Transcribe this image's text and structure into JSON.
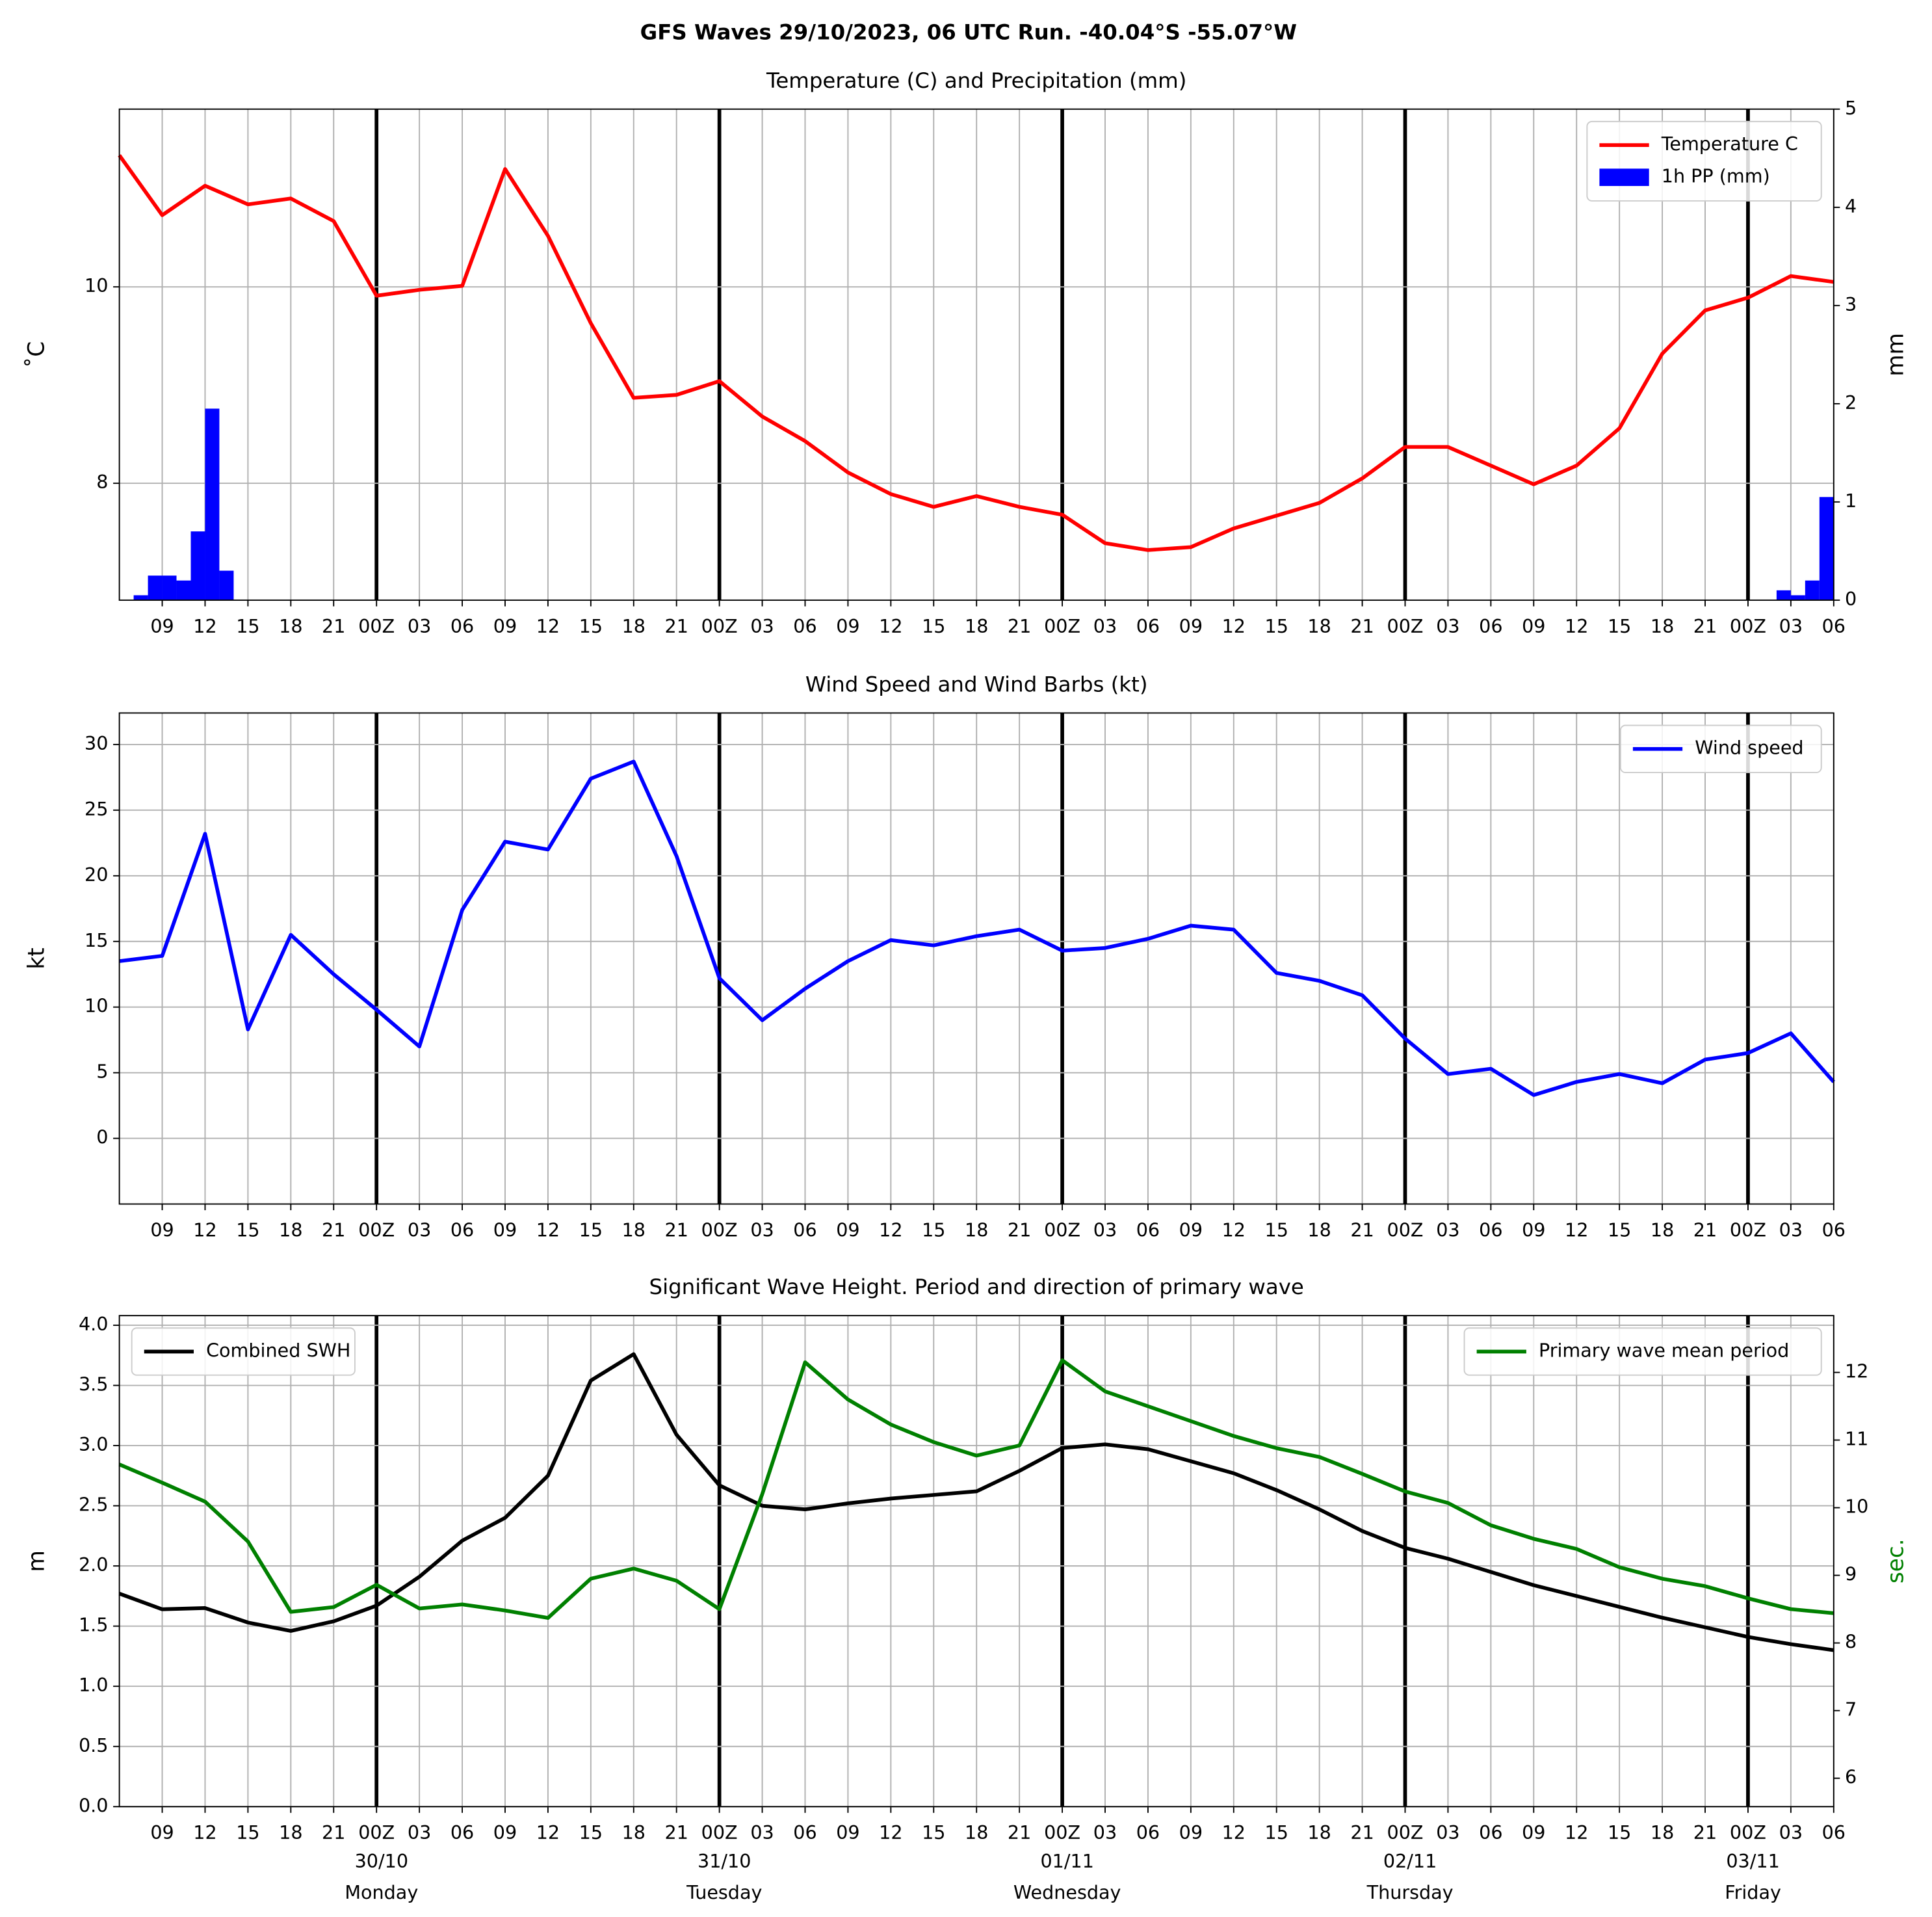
{
  "title": "GFS Waves 29/10/2023, 06 UTC Run. -40.04°S -55.07°W",
  "chart_data": [
    {
      "type": "line",
      "title": "Temperature (C) and Precipitation (mm)",
      "ylabel": "˚C",
      "y2label": "mm",
      "xlim": [
        0,
        120
      ],
      "ylim": [
        6.81,
        11.81
      ],
      "yticks": [
        8,
        10
      ],
      "y2lim": [
        0,
        5
      ],
      "y2ticks": [
        0,
        1,
        2,
        3,
        4,
        5
      ],
      "grid": true,
      "xticks": [
        {
          "value": 3,
          "label": "09"
        },
        {
          "value": 6,
          "label": "12"
        },
        {
          "value": 9,
          "label": "15"
        },
        {
          "value": 12,
          "label": "18"
        },
        {
          "value": 15,
          "label": "21"
        },
        {
          "value": 18,
          "label": "00Z"
        },
        {
          "value": 21,
          "label": "03"
        },
        {
          "value": 24,
          "label": "06"
        },
        {
          "value": 27,
          "label": "09"
        },
        {
          "value": 30,
          "label": "12"
        },
        {
          "value": 33,
          "label": "15"
        },
        {
          "value": 36,
          "label": "18"
        },
        {
          "value": 39,
          "label": "21"
        },
        {
          "value": 42,
          "label": "00Z"
        },
        {
          "value": 45,
          "label": "03"
        },
        {
          "value": 48,
          "label": "06"
        },
        {
          "value": 51,
          "label": "09"
        },
        {
          "value": 54,
          "label": "12"
        },
        {
          "value": 57,
          "label": "15"
        },
        {
          "value": 60,
          "label": "18"
        },
        {
          "value": 63,
          "label": "21"
        },
        {
          "value": 66,
          "label": "00Z"
        },
        {
          "value": 69,
          "label": "03"
        },
        {
          "value": 72,
          "label": "06"
        },
        {
          "value": 75,
          "label": "09"
        },
        {
          "value": 78,
          "label": "12"
        },
        {
          "value": 81,
          "label": "15"
        },
        {
          "value": 84,
          "label": "18"
        },
        {
          "value": 87,
          "label": "21"
        },
        {
          "value": 90,
          "label": "00Z"
        },
        {
          "value": 93,
          "label": "03"
        },
        {
          "value": 96,
          "label": "06"
        },
        {
          "value": 99,
          "label": "09"
        },
        {
          "value": 102,
          "label": "12"
        },
        {
          "value": 105,
          "label": "15"
        },
        {
          "value": 108,
          "label": "18"
        },
        {
          "value": 111,
          "label": "21"
        },
        {
          "value": 114,
          "label": "00Z"
        },
        {
          "value": 117,
          "label": "03"
        },
        {
          "value": 120,
          "label": "06"
        }
      ],
      "x": [
        0,
        3,
        6,
        9,
        12,
        15,
        18,
        21,
        24,
        27,
        30,
        33,
        36,
        39,
        42,
        45,
        48,
        51,
        54,
        57,
        60,
        63,
        66,
        69,
        72,
        75,
        78,
        81,
        84,
        87,
        90,
        93,
        96,
        99,
        102,
        105,
        108,
        111,
        114,
        117,
        120
      ],
      "series": [
        {
          "name": "Temperature C",
          "type": "line",
          "axis": "y",
          "color": "#ff0000",
          "legend": "upper right",
          "values": [
            11.34,
            10.73,
            11.03,
            10.84,
            10.9,
            10.67,
            9.91,
            9.97,
            10.01,
            11.2,
            10.52,
            9.63,
            8.87,
            8.9,
            9.04,
            8.68,
            8.43,
            8.11,
            7.89,
            7.76,
            7.87,
            7.76,
            7.68,
            7.39,
            7.32,
            7.35,
            7.54,
            7.67,
            7.8,
            8.05,
            8.37,
            8.37,
            8.18,
            7.99,
            8.18,
            8.56,
            9.32,
            9.76,
            9.89,
            10.11,
            10.05
          ]
        },
        {
          "name": "1h PP (mm)",
          "type": "bar",
          "axis": "y2",
          "color": "#0000ff",
          "legend": "upper right",
          "x": [
            1,
            2,
            3,
            4,
            5,
            6,
            7,
            116,
            117,
            118,
            119
          ],
          "values": [
            0.05,
            0.25,
            0.25,
            0.2,
            0.7,
            1.95,
            0.3,
            0.1,
            0.05,
            0.2,
            1.05
          ]
        }
      ]
    },
    {
      "type": "line",
      "title": "Wind Speed and Wind Barbs (kt)",
      "ylabel": "kt",
      "xlim": [
        0,
        120
      ],
      "ylim": [
        -5,
        32.4
      ],
      "yticks": [
        0,
        5,
        10,
        15,
        20,
        25,
        30
      ],
      "grid": true,
      "xticks": [
        {
          "value": 3,
          "label": "09"
        },
        {
          "value": 6,
          "label": "12"
        },
        {
          "value": 9,
          "label": "15"
        },
        {
          "value": 12,
          "label": "18"
        },
        {
          "value": 15,
          "label": "21"
        },
        {
          "value": 18,
          "label": "00Z"
        },
        {
          "value": 21,
          "label": "03"
        },
        {
          "value": 24,
          "label": "06"
        },
        {
          "value": 27,
          "label": "09"
        },
        {
          "value": 30,
          "label": "12"
        },
        {
          "value": 33,
          "label": "15"
        },
        {
          "value": 36,
          "label": "18"
        },
        {
          "value": 39,
          "label": "21"
        },
        {
          "value": 42,
          "label": "00Z"
        },
        {
          "value": 45,
          "label": "03"
        },
        {
          "value": 48,
          "label": "06"
        },
        {
          "value": 51,
          "label": "09"
        },
        {
          "value": 54,
          "label": "12"
        },
        {
          "value": 57,
          "label": "15"
        },
        {
          "value": 60,
          "label": "18"
        },
        {
          "value": 63,
          "label": "21"
        },
        {
          "value": 66,
          "label": "00Z"
        },
        {
          "value": 69,
          "label": "03"
        },
        {
          "value": 72,
          "label": "06"
        },
        {
          "value": 75,
          "label": "09"
        },
        {
          "value": 78,
          "label": "12"
        },
        {
          "value": 81,
          "label": "15"
        },
        {
          "value": 84,
          "label": "18"
        },
        {
          "value": 87,
          "label": "21"
        },
        {
          "value": 90,
          "label": "00Z"
        },
        {
          "value": 93,
          "label": "03"
        },
        {
          "value": 96,
          "label": "06"
        },
        {
          "value": 99,
          "label": "09"
        },
        {
          "value": 102,
          "label": "12"
        },
        {
          "value": 105,
          "label": "15"
        },
        {
          "value": 108,
          "label": "18"
        },
        {
          "value": 111,
          "label": "21"
        },
        {
          "value": 114,
          "label": "00Z"
        },
        {
          "value": 117,
          "label": "03"
        },
        {
          "value": 120,
          "label": "06"
        }
      ],
      "x": [
        0,
        3,
        6,
        9,
        12,
        15,
        18,
        21,
        24,
        27,
        30,
        33,
        36,
        39,
        42,
        45,
        48,
        51,
        54,
        57,
        60,
        63,
        66,
        69,
        72,
        75,
        78,
        81,
        84,
        87,
        90,
        93,
        96,
        99,
        102,
        105,
        108,
        111,
        114,
        117,
        120
      ],
      "series": [
        {
          "name": "Wind speed",
          "type": "line",
          "axis": "y",
          "color": "#0000ff",
          "legend": "upper right",
          "values": [
            13.5,
            13.9,
            23.2,
            8.3,
            15.5,
            12.5,
            9.8,
            7.0,
            17.4,
            22.6,
            22.0,
            27.4,
            28.7,
            21.5,
            12.2,
            9.0,
            11.4,
            13.5,
            15.1,
            14.7,
            15.4,
            15.9,
            14.3,
            14.5,
            15.2,
            16.2,
            15.9,
            12.6,
            12.0,
            10.9,
            7.6,
            4.9,
            5.3,
            3.3,
            4.3,
            4.9,
            4.2,
            6.0,
            6.5,
            8.0,
            4.3
          ]
        }
      ]
    },
    {
      "type": "line",
      "title": "Significant Wave Height. Period and direction of primary wave",
      "ylabel": "m",
      "y2label": "sec.",
      "y2label_color": "#008000",
      "xlim": [
        0,
        120
      ],
      "ylim": [
        0,
        4.08
      ],
      "y2lim": [
        5.58,
        12.84
      ],
      "grid": true,
      "yticks": [
        {
          "value": 0,
          "label": "0.0"
        },
        {
          "value": 0.5,
          "label": "0.5"
        },
        {
          "value": 1,
          "label": "1.0"
        },
        {
          "value": 1.5,
          "label": "1.5"
        },
        {
          "value": 2,
          "label": "2.0"
        },
        {
          "value": 2.5,
          "label": "2.5"
        },
        {
          "value": 3,
          "label": "3.0"
        },
        {
          "value": 3.5,
          "label": "3.5"
        },
        {
          "value": 4,
          "label": "4.0"
        }
      ],
      "y2ticks": [
        6,
        7,
        8,
        9,
        10,
        11,
        12
      ],
      "xticks": [
        {
          "value": 3,
          "label": "09"
        },
        {
          "value": 6,
          "label": "12"
        },
        {
          "value": 9,
          "label": "15"
        },
        {
          "value": 12,
          "label": "18"
        },
        {
          "value": 15,
          "label": "21"
        },
        {
          "value": 18,
          "label": "00Z"
        },
        {
          "value": 21,
          "label": "03"
        },
        {
          "value": 24,
          "label": "06"
        },
        {
          "value": 27,
          "label": "09"
        },
        {
          "value": 30,
          "label": "12"
        },
        {
          "value": 33,
          "label": "15"
        },
        {
          "value": 36,
          "label": "18"
        },
        {
          "value": 39,
          "label": "21"
        },
        {
          "value": 42,
          "label": "00Z"
        },
        {
          "value": 45,
          "label": "03"
        },
        {
          "value": 48,
          "label": "06"
        },
        {
          "value": 51,
          "label": "09"
        },
        {
          "value": 54,
          "label": "12"
        },
        {
          "value": 57,
          "label": "15"
        },
        {
          "value": 60,
          "label": "18"
        },
        {
          "value": 63,
          "label": "21"
        },
        {
          "value": 66,
          "label": "00Z"
        },
        {
          "value": 69,
          "label": "03"
        },
        {
          "value": 72,
          "label": "06"
        },
        {
          "value": 75,
          "label": "09"
        },
        {
          "value": 78,
          "label": "12"
        },
        {
          "value": 81,
          "label": "15"
        },
        {
          "value": 84,
          "label": "18"
        },
        {
          "value": 87,
          "label": "21"
        },
        {
          "value": 90,
          "label": "00Z"
        },
        {
          "value": 93,
          "label": "03"
        },
        {
          "value": 96,
          "label": "06"
        },
        {
          "value": 99,
          "label": "09"
        },
        {
          "value": 102,
          "label": "12"
        },
        {
          "value": 105,
          "label": "15"
        },
        {
          "value": 108,
          "label": "18"
        },
        {
          "value": 111,
          "label": "21"
        },
        {
          "value": 114,
          "label": "00Z"
        },
        {
          "value": 117,
          "label": "03"
        },
        {
          "value": 120,
          "label": "06"
        }
      ],
      "day_labels": [
        {
          "value": 18,
          "date": "30/10",
          "day": "Monday"
        },
        {
          "value": 42,
          "date": "31/10",
          "day": "Tuesday"
        },
        {
          "value": 66,
          "date": "01/11",
          "day": "Wednesday"
        },
        {
          "value": 90,
          "date": "02/11",
          "day": "Thursday"
        },
        {
          "value": 114,
          "date": "03/11",
          "day": "Friday"
        }
      ],
      "x": [
        0,
        3,
        6,
        9,
        12,
        15,
        18,
        21,
        24,
        27,
        30,
        33,
        36,
        39,
        42,
        45,
        48,
        51,
        54,
        57,
        60,
        63,
        66,
        69,
        72,
        75,
        78,
        81,
        84,
        87,
        90,
        93,
        96,
        99,
        102,
        105,
        108,
        111,
        114,
        117,
        120
      ],
      "series": [
        {
          "name": "Combined SWH",
          "type": "line",
          "axis": "y",
          "color": "#000000",
          "legend": "upper left",
          "values": [
            1.77,
            1.64,
            1.65,
            1.53,
            1.46,
            1.54,
            1.67,
            1.91,
            2.21,
            2.4,
            2.75,
            3.54,
            3.76,
            3.09,
            2.67,
            2.5,
            2.47,
            2.52,
            2.56,
            2.59,
            2.62,
            2.79,
            2.98,
            3.01,
            2.97,
            2.87,
            2.77,
            2.63,
            2.47,
            2.29,
            2.15,
            2.06,
            1.95,
            1.84,
            1.75,
            1.66,
            1.57,
            1.49,
            1.41,
            1.35,
            1.3
          ]
        },
        {
          "name": "Primary wave mean period",
          "type": "line",
          "axis": "y2",
          "color": "#008000",
          "legend": "upper right",
          "values": [
            10.64,
            10.37,
            10.09,
            9.5,
            8.46,
            8.53,
            8.86,
            8.51,
            8.57,
            8.48,
            8.37,
            8.95,
            9.1,
            8.92,
            8.5,
            10.2,
            12.15,
            11.6,
            11.23,
            10.97,
            10.77,
            10.92,
            12.18,
            11.72,
            11.5,
            11.28,
            11.06,
            10.88,
            10.75,
            10.5,
            10.24,
            10.07,
            9.74,
            9.54,
            9.39,
            9.12,
            8.95,
            8.84,
            8.66,
            8.5,
            8.44
          ]
        }
      ]
    }
  ]
}
